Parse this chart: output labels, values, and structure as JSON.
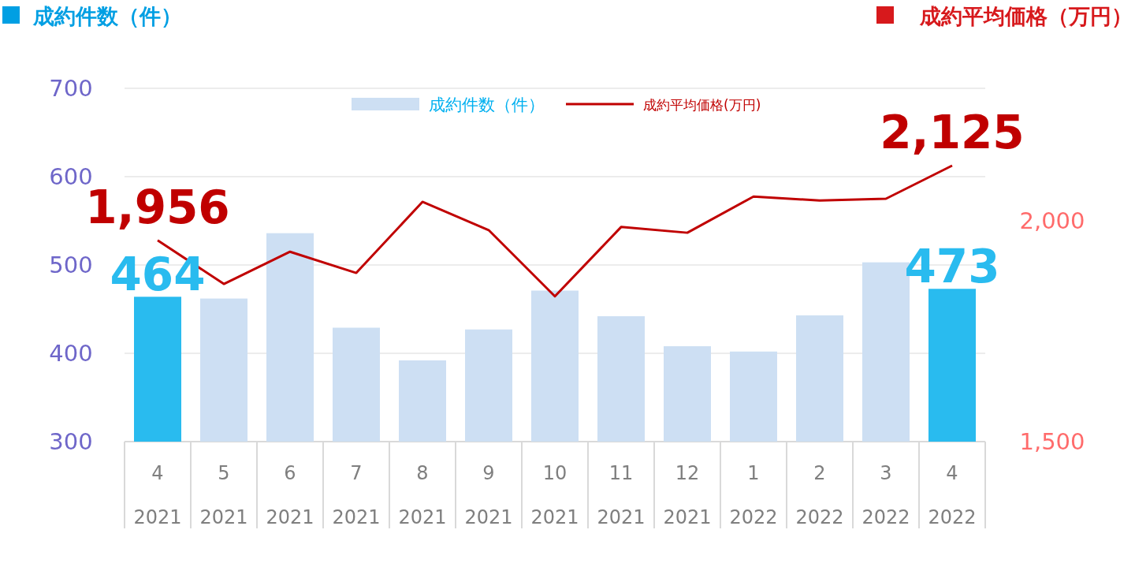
{
  "chart_data": {
    "type": "bar",
    "ylabel": "成約件数（件）",
    "y2label": "成約平均価格（万円）",
    "categories": [
      "4\n2021",
      "5\n2021",
      "6\n2021",
      "7\n2021",
      "8\n2021",
      "9\n2021",
      "10\n2021",
      "11\n2021",
      "12\n2021",
      "1\n2022",
      "2\n2022",
      "3\n2022",
      "4\n2022"
    ],
    "series": [
      {
        "name": "成約件数（件）",
        "color": "#cddff3",
        "colors": [
          "#29bbef",
          "#cddff3",
          "#cddff3",
          "#cddff3",
          "#cddff3",
          "#cddff3",
          "#cddff3",
          "#cddff3",
          "#cddff3",
          "#cddff3",
          "#cddff3",
          "#cddff3",
          "#29bbef"
        ],
        "values": [
          464,
          462,
          536,
          429,
          392,
          427,
          471,
          442,
          408,
          402,
          443,
          503,
          473
        ],
        "value_labels": [
          "464",
          null,
          null,
          null,
          null,
          null,
          null,
          null,
          null,
          null,
          null,
          null,
          "473"
        ]
      },
      {
        "name": "成約平均価格(万円)",
        "type": "line",
        "axis": "y2",
        "color": "#c00000",
        "values": [
          1956,
          1857,
          1930,
          1882,
          2043,
          1979,
          1829,
          1986,
          1973,
          2055,
          2046,
          2050,
          2125
        ],
        "value_labels": [
          "1,956",
          null,
          null,
          null,
          null,
          null,
          null,
          null,
          null,
          null,
          null,
          null,
          "2,125"
        ]
      }
    ],
    "ylim": [
      300,
      700
    ],
    "yticks": [
      300,
      400,
      500,
      600,
      700
    ],
    "y2lim": [
      1500,
      2300
    ],
    "y2ticks": [
      {
        "value": 1500,
        "label": "1,500"
      },
      {
        "value": 2000,
        "label": "2,000"
      }
    ],
    "grid": "y",
    "legend": "top",
    "line_style": "solid"
  }
}
